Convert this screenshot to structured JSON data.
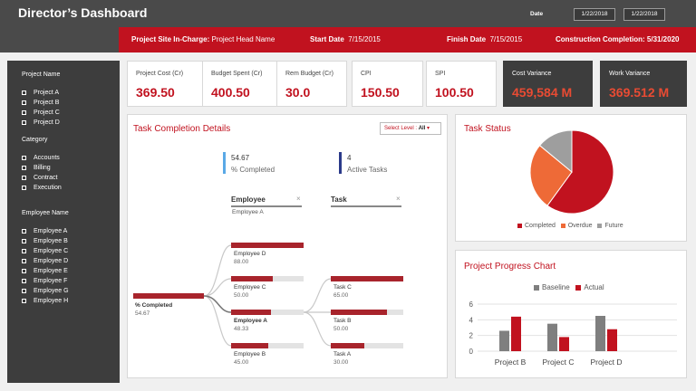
{
  "header": {
    "title": "Director’s Dashboard",
    "date_label": "Date",
    "date_from": "1/22/2018",
    "date_to": "1/22/2018"
  },
  "infobar": {
    "site_label": "Project Site In-Charge:",
    "site_value": "Project Head Name",
    "start_label": "Start Date",
    "start_value": "7/15/2015",
    "finish_label": "Finish Date",
    "finish_value": "7/15/2015",
    "completion_label": "Construction Completion:",
    "completion_value": "5/31/2020"
  },
  "sidebar": {
    "project_heading": "Project Name",
    "projects": [
      "Project A",
      "Project B",
      "Project C",
      "Project D"
    ],
    "category_heading": "Category",
    "categories": [
      "Accounts",
      "Billing",
      "Contract",
      "Execution"
    ],
    "employee_heading": "Employee Name",
    "employees": [
      "Employee A",
      "Employee B",
      "Employee C",
      "Employee D",
      "Employee E",
      "Employee F",
      "Employee G",
      "Employee  H"
    ]
  },
  "kpis": [
    {
      "label": "Project Cost (Cr)",
      "value": "369.50"
    },
    {
      "label": "Budget Spent (Cr)",
      "value": "400.50"
    },
    {
      "label": "Rem Budget (Cr)",
      "value": "30.0"
    },
    {
      "label": "CPI",
      "value": "150.50"
    },
    {
      "label": "SPI",
      "value": "100.50"
    },
    {
      "label": "Cost Variance",
      "value": "459,584 M"
    },
    {
      "label": "Work Variance",
      "value": "369.512 M"
    }
  ],
  "task_completion": {
    "title": "Task Completion Details",
    "select_prefix": "Select Level :",
    "select_value": "All",
    "select_arrow": "▾",
    "metric1_value": "54.67",
    "metric1_label": "% Completed",
    "metric2_value": "4",
    "metric2_label": "Active Tasks",
    "employee_col": "Employee",
    "task_col": "Task",
    "close_glyph": "×",
    "employee_filter": "Employee A",
    "root": {
      "name": "% Completed",
      "value": "54.67",
      "fraction": 1.0
    },
    "employees": [
      {
        "name": "Employee D",
        "value": "88.00",
        "fraction": 1.0
      },
      {
        "name": "Employee C",
        "value": "50.00",
        "fraction": 0.57
      },
      {
        "name": "Employee A",
        "value": "48.33",
        "fraction": 0.55
      },
      {
        "name": "Employee B",
        "value": "45.00",
        "fraction": 0.51
      }
    ],
    "tasks": [
      {
        "name": "Task C",
        "value": "65.00",
        "fraction": 1.0
      },
      {
        "name": "Task B",
        "value": "50.00",
        "fraction": 0.77
      },
      {
        "name": "Task A",
        "value": "30.00",
        "fraction": 0.46
      }
    ]
  },
  "task_status": {
    "title": "Task Status",
    "slices": [
      {
        "name": "Completed",
        "value": 60,
        "color": "#c1121f"
      },
      {
        "name": "Overdue",
        "value": 26,
        "color": "#ee6a37"
      },
      {
        "name": "Future",
        "value": 14,
        "color": "#9e9e9e"
      }
    ]
  },
  "progress": {
    "title": "Project Progress Chart",
    "legend": [
      "Baseline",
      "Actual"
    ],
    "colors": {
      "baseline": "#7f7f7f",
      "actual": "#c1121f"
    },
    "categories": [
      "Project B",
      "Project C",
      "Project D"
    ],
    "baseline": [
      2.6,
      3.5,
      4.5
    ],
    "actual": [
      4.4,
      1.8,
      2.8
    ],
    "ticks": [
      "0",
      "2",
      "4",
      "6"
    ],
    "ylim": [
      0,
      6
    ]
  },
  "chart_data": [
    {
      "type": "pie",
      "title": "Task Status",
      "categories": [
        "Completed",
        "Overdue",
        "Future"
      ],
      "values": [
        60,
        26,
        14
      ]
    },
    {
      "type": "bar",
      "title": "Project Progress Chart",
      "categories": [
        "Project B",
        "Project C",
        "Project D"
      ],
      "series": [
        {
          "name": "Baseline",
          "values": [
            2.6,
            3.5,
            4.5
          ]
        },
        {
          "name": "Actual",
          "values": [
            4.4,
            1.8,
            2.8
          ]
        }
      ],
      "ylim": [
        0,
        6
      ],
      "grid": true,
      "legend": "top"
    }
  ]
}
